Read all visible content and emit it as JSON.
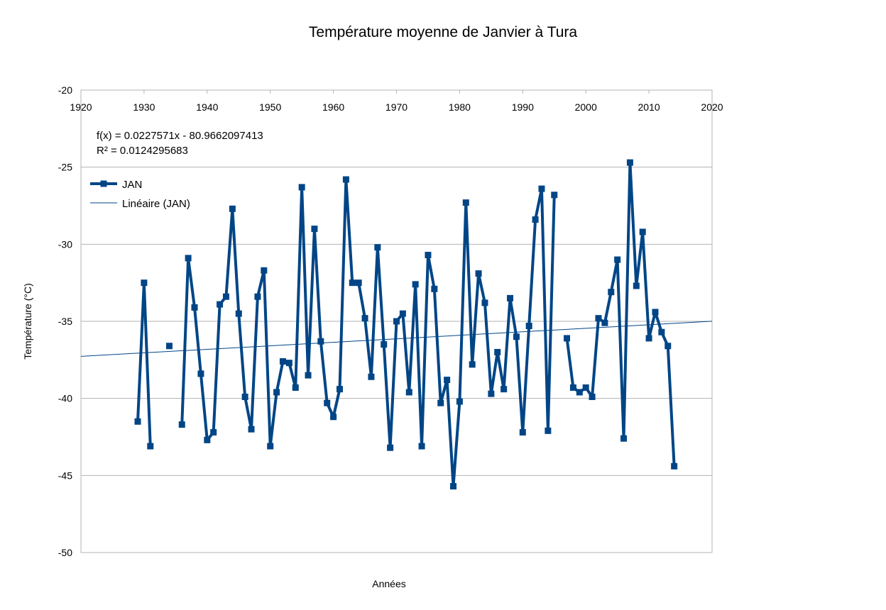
{
  "chart_data": {
    "type": "line",
    "title": "Température moyenne de Janvier à Tura",
    "xlabel": "Années",
    "ylabel": "Température (°C)",
    "xlim": [
      1920,
      2020
    ],
    "ylim": [
      -50,
      -20
    ],
    "x_ticks": [
      "1920",
      "1930",
      "1940",
      "1950",
      "1960",
      "1970",
      "1980",
      "1990",
      "2000",
      "2010",
      "2020"
    ],
    "y_ticks": [
      "-20",
      "-25",
      "-30",
      "-35",
      "-40",
      "-45",
      "-50"
    ],
    "x_tick_values": [
      1920,
      1930,
      1940,
      1950,
      1960,
      1970,
      1980,
      1990,
      2000,
      2010,
      2020
    ],
    "y_tick_values": [
      -20,
      -25,
      -30,
      -35,
      -40,
      -45,
      -50
    ],
    "grid": "horizontal",
    "legend_position": "top-left",
    "colors": {
      "series": "#004586",
      "trend": "#004586",
      "grid": "#b3b3b3"
    },
    "series": [
      {
        "name": "JAN",
        "x": [
          1929,
          1930,
          1931,
          1932,
          1933,
          1934,
          1935,
          1936,
          1937,
          1938,
          1939,
          1940,
          1941,
          1942,
          1943,
          1944,
          1945,
          1946,
          1947,
          1948,
          1949,
          1950,
          1951,
          1952,
          1953,
          1954,
          1955,
          1956,
          1957,
          1958,
          1959,
          1960,
          1961,
          1962,
          1963,
          1964,
          1965,
          1966,
          1967,
          1968,
          1969,
          1970,
          1971,
          1972,
          1973,
          1974,
          1975,
          1976,
          1977,
          1978,
          1979,
          1980,
          1981,
          1982,
          1983,
          1984,
          1985,
          1986,
          1987,
          1988,
          1989,
          1990,
          1991,
          1992,
          1993,
          1994,
          1995,
          1996,
          1997,
          1998,
          1999,
          2000,
          2001,
          2002,
          2003,
          2004,
          2005,
          2006,
          2007,
          2008,
          2009,
          2010,
          2011,
          2012,
          2013,
          2014
        ],
        "values": [
          -41.5,
          -32.5,
          -43.1,
          null,
          null,
          -36.6,
          null,
          -41.7,
          -30.9,
          -34.1,
          -38.4,
          -42.7,
          -42.2,
          -33.9,
          -33.4,
          -27.7,
          -34.5,
          -39.9,
          -42.0,
          -33.4,
          -31.7,
          -43.1,
          -39.6,
          -37.6,
          -37.7,
          -39.3,
          -26.3,
          -38.5,
          -29.0,
          -36.3,
          -40.3,
          -41.2,
          -39.4,
          -25.8,
          -32.5,
          -32.5,
          -34.8,
          -38.6,
          -30.2,
          -36.5,
          -43.2,
          -35.0,
          -34.5,
          -39.6,
          -32.6,
          -43.1,
          -30.7,
          -32.9,
          -40.3,
          -38.8,
          -45.7,
          -40.2,
          -27.3,
          -37.8,
          -31.9,
          -33.8,
          -39.7,
          -37.0,
          -39.4,
          -33.5,
          -36.0,
          -42.2,
          -35.3,
          -28.4,
          -26.4,
          -42.1,
          -26.8,
          null,
          -36.1,
          -39.3,
          -39.6,
          -39.3,
          -39.9,
          -34.8,
          -35.1,
          -33.1,
          -31.0,
          -42.6,
          -24.7,
          -32.7,
          -29.2,
          -36.1,
          -34.4,
          -35.7,
          -36.6,
          -44.4
        ]
      },
      {
        "name": "Linéaire (JAN)",
        "type": "trendline",
        "slope": 0.0227571,
        "intercept": -80.9662097413
      }
    ],
    "annotations": {
      "equation": "f(x) = 0.0227571x - 80.9662097413",
      "r_squared": "R² = 0.0124295683"
    }
  }
}
